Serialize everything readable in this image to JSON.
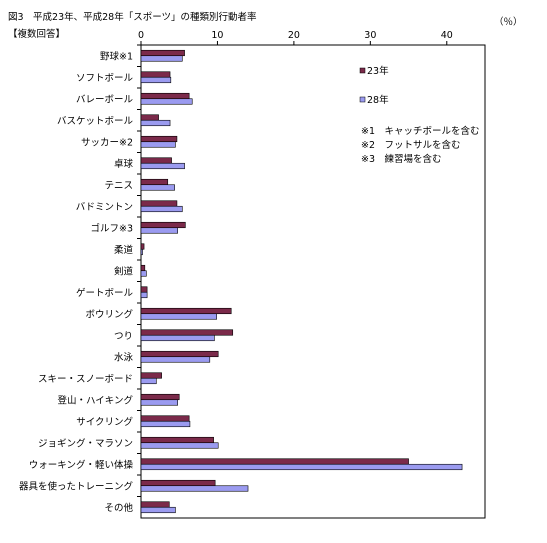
{
  "chart_data": {
    "type": "bar",
    "orientation": "horizontal",
    "title": "図3　平成23年、平成28年「スポーツ」の種類別行動者率",
    "subtitle": "【複数回答】",
    "unit": "（％）",
    "xlim": [
      0,
      45
    ],
    "xticks": [
      0,
      10,
      20,
      30,
      40
    ],
    "grid": false,
    "legend_position": "right",
    "categories": [
      "野球※1",
      "ソフトボール",
      "バレーボール",
      "バスケットボール",
      "サッカー※2",
      "卓球",
      "テニス",
      "バドミントン",
      "ゴルフ※3",
      "柔道",
      "剣道",
      "ゲートボール",
      "ボウリング",
      "つり",
      "水泳",
      "スキー・スノーボード",
      "登山・ハイキング",
      "サイクリング",
      "ジョギング・マラソン",
      "ウォーキング・軽い体操",
      "器具を使ったトレーニング",
      "その他"
    ],
    "series": [
      {
        "name": "23年",
        "color": "#7b2a4a",
        "values": [
          5.7,
          3.8,
          6.3,
          2.3,
          4.7,
          4.0,
          3.5,
          4.7,
          5.8,
          0.4,
          0.5,
          0.8,
          11.8,
          12.0,
          10.1,
          2.7,
          5.0,
          6.3,
          9.5,
          35.0,
          9.7,
          3.7
        ]
      },
      {
        "name": "28年",
        "color": "#9b9bf0",
        "values": [
          5.4,
          3.9,
          6.7,
          3.8,
          4.5,
          5.7,
          4.4,
          5.4,
          4.8,
          0.2,
          0.7,
          0.8,
          9.9,
          9.6,
          9.0,
          2.0,
          4.8,
          6.4,
          10.1,
          42.0,
          14.0,
          4.5
        ]
      }
    ],
    "notes": [
      "※1　キャッチボールを含む",
      "※2　フットサルを含む",
      "※3　練習場を含む"
    ]
  }
}
